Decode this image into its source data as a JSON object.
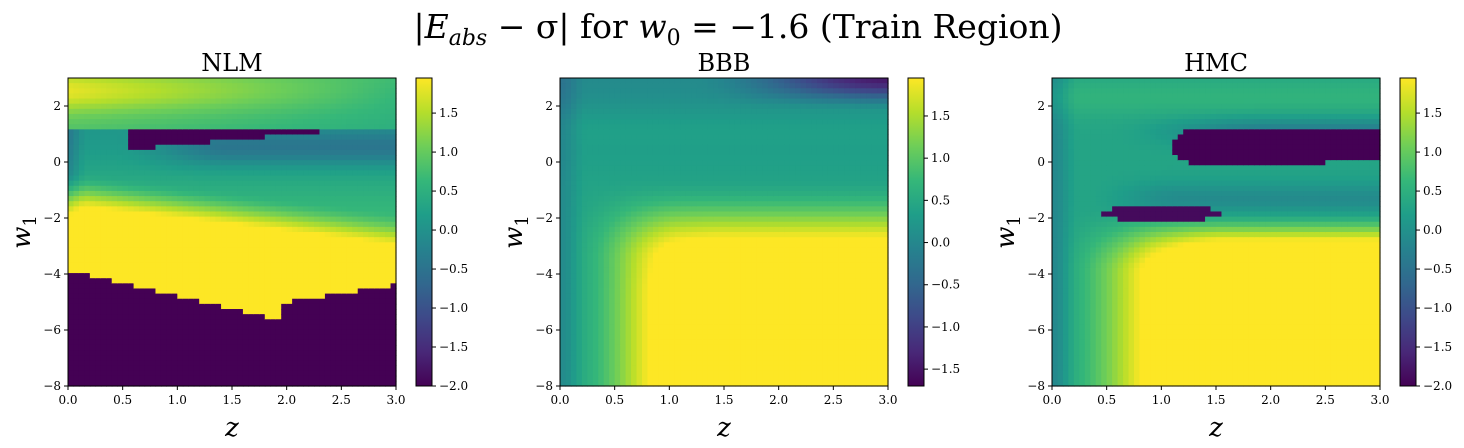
{
  "figure": {
    "title_parts": [
      "|",
      "E",
      "abs",
      " − σ| for ",
      "w",
      "0",
      " = −1.6 (Train Region)"
    ],
    "colormap": [
      "#440154",
      "#482878",
      "#3e4989",
      "#31688e",
      "#26828e",
      "#1f9e89",
      "#35b779",
      "#6ece58",
      "#b5de2b",
      "#fde725"
    ]
  },
  "chart_data": [
    {
      "type": "heatmap",
      "title": "NLM",
      "xlabel": "z",
      "ylabel_parts": [
        "w",
        "1"
      ],
      "xlim": [
        0,
        3
      ],
      "ylim": [
        -8,
        3
      ],
      "xticks": [
        0.0,
        0.5,
        1.0,
        1.5,
        2.0,
        2.5,
        3.0
      ],
      "xtick_labels": [
        "0.0",
        "0.5",
        "1.0",
        "1.5",
        "2.0",
        "2.5",
        "3.0"
      ],
      "yticks": [
        -8,
        -6,
        -4,
        -2,
        0,
        2
      ],
      "ytick_labels": [
        "−8",
        "−6",
        "−4",
        "−2",
        "0",
        "2"
      ],
      "colorbar": {
        "range": [
          -2.0,
          1.95
        ],
        "ticks": [
          -2.0,
          -1.5,
          -1.0,
          -0.5,
          0.0,
          0.5,
          1.0,
          1.5
        ],
        "tick_labels": [
          "−2.0",
          "−1.5",
          "−1.0",
          "−0.5",
          "0.0",
          "0.5",
          "1.0",
          "1.5"
        ]
      }
    },
    {
      "type": "heatmap",
      "title": "BBB",
      "xlabel": "z",
      "ylabel_parts": [
        "w",
        "1"
      ],
      "xlim": [
        0,
        3
      ],
      "ylim": [
        -8,
        3
      ],
      "xticks": [
        0.0,
        0.5,
        1.0,
        1.5,
        2.0,
        2.5,
        3.0
      ],
      "xtick_labels": [
        "0.0",
        "0.5",
        "1.0",
        "1.5",
        "2.0",
        "2.5",
        "3.0"
      ],
      "yticks": [
        -8,
        -6,
        -4,
        -2,
        0,
        2
      ],
      "ytick_labels": [
        "−8",
        "−6",
        "−4",
        "−2",
        "0",
        "2"
      ],
      "colorbar": {
        "range": [
          -1.7,
          1.95
        ],
        "ticks": [
          -1.5,
          -1.0,
          -0.5,
          0.0,
          0.5,
          1.0,
          1.5
        ],
        "tick_labels": [
          "−1.5",
          "−1.0",
          "−0.5",
          "0.0",
          "0.5",
          "1.0",
          "1.5"
        ]
      }
    },
    {
      "type": "heatmap",
      "title": "HMC",
      "xlabel": "z",
      "ylabel_parts": [
        "w",
        "1"
      ],
      "xlim": [
        0,
        3
      ],
      "ylim": [
        -8,
        3
      ],
      "xticks": [
        0.0,
        0.5,
        1.0,
        1.5,
        2.0,
        2.5,
        3.0
      ],
      "xtick_labels": [
        "0.0",
        "0.5",
        "1.0",
        "1.5",
        "2.0",
        "2.5",
        "3.0"
      ],
      "yticks": [
        -8,
        -6,
        -4,
        -2,
        0,
        2
      ],
      "ytick_labels": [
        "−8",
        "−6",
        "−4",
        "−2",
        "0",
        "2"
      ],
      "colorbar": {
        "range": [
          -2.0,
          1.95
        ],
        "ticks": [
          -2.0,
          -1.5,
          -1.0,
          -0.5,
          0.0,
          0.5,
          1.0,
          1.5
        ],
        "tick_labels": [
          "−2.0",
          "−1.5",
          "−1.0",
          "−0.5",
          "0.0",
          "0.5",
          "1.0",
          "1.5"
        ]
      }
    }
  ]
}
